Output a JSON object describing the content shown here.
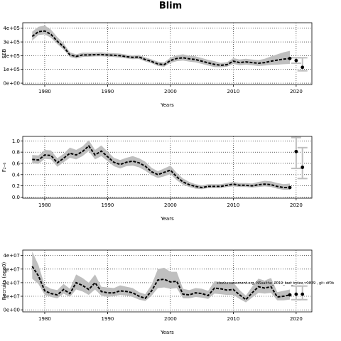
{
  "title": "Blim",
  "chart_data": [
    {
      "type": "line",
      "ylabel": "SSB",
      "xlabel": "Years",
      "xlim": [
        1976.5,
        2022.5
      ],
      "ylim": [
        -10000,
        440000
      ],
      "xticks": [
        1980,
        1990,
        2000,
        2010,
        2020
      ],
      "xtick_labels": [
        "1980",
        "1990",
        "2000",
        "2010",
        "2020"
      ],
      "yticks": [
        0,
        100000,
        200000,
        300000,
        400000
      ],
      "ytick_labels": [
        "0e+00",
        "1e+05",
        "2e+05",
        "3e+05",
        "4e+05"
      ],
      "grid": true,
      "x": [
        1978,
        1979,
        1980,
        1981,
        1982,
        1983,
        1984,
        1985,
        1986,
        1987,
        1988,
        1989,
        1990,
        1991,
        1992,
        1993,
        1994,
        1995,
        1996,
        1997,
        1998,
        1999,
        2000,
        2001,
        2002,
        2003,
        2004,
        2005,
        2006,
        2007,
        2008,
        2009,
        2010,
        2011,
        2012,
        2013,
        2014,
        2015,
        2016,
        2017,
        2018,
        2019
      ],
      "estimate": [
        340000,
        375000,
        380000,
        355000,
        305000,
        265000,
        205000,
        195000,
        205000,
        205000,
        207000,
        208000,
        205000,
        203000,
        200000,
        193000,
        188000,
        190000,
        172000,
        158000,
        140000,
        135000,
        165000,
        180000,
        185000,
        177000,
        172000,
        160000,
        148000,
        137000,
        130000,
        135000,
        160000,
        150000,
        155000,
        150000,
        145000,
        150000,
        160000,
        168000,
        175000,
        180000
      ],
      "lower": [
        310000,
        350000,
        355000,
        330000,
        285000,
        245000,
        190000,
        180000,
        190000,
        192000,
        195000,
        196000,
        193000,
        190000,
        186000,
        180000,
        175000,
        176000,
        158000,
        145000,
        125000,
        120000,
        148000,
        160000,
        165000,
        157000,
        152000,
        140000,
        128000,
        117000,
        115000,
        120000,
        140000,
        130000,
        135000,
        130000,
        125000,
        128000,
        133000,
        135000,
        138000,
        140000
      ],
      "upper": [
        375000,
        410000,
        420000,
        390000,
        335000,
        290000,
        225000,
        210000,
        222000,
        222000,
        223000,
        225000,
        220000,
        218000,
        215000,
        208000,
        202000,
        206000,
        188000,
        173000,
        157000,
        152000,
        185000,
        203000,
        210000,
        200000,
        195000,
        183000,
        170000,
        160000,
        148000,
        153000,
        182000,
        172000,
        178000,
        172000,
        168000,
        178000,
        195000,
        210000,
        225000,
        235000
      ],
      "projection": [
        {
          "year": 2020,
          "value": 165000,
          "lower": 145000,
          "upper": 185000
        },
        {
          "year": 2021,
          "value": 115000,
          "lower": 90000,
          "upper": 185000
        }
      ]
    },
    {
      "type": "line",
      "ylabel": "F₂₋₆",
      "xlabel": "Years",
      "xlim": [
        1976.5,
        2022.5
      ],
      "ylim": [
        -0.02,
        1.08
      ],
      "xticks": [
        1980,
        1990,
        2000,
        2010,
        2020
      ],
      "xtick_labels": [
        "1980",
        "1990",
        "2000",
        "2010",
        "2020"
      ],
      "yticks": [
        0.0,
        0.2,
        0.4,
        0.6,
        0.8,
        1.0
      ],
      "ytick_labels": [
        "0.0",
        "0.2",
        "0.4",
        "0.6",
        "0.8",
        "1.0"
      ],
      "grid": true,
      "x": [
        1978,
        1979,
        1980,
        1981,
        1982,
        1983,
        1984,
        1985,
        1986,
        1987,
        1988,
        1989,
        1990,
        1991,
        1992,
        1993,
        1994,
        1995,
        1996,
        1997,
        1998,
        1999,
        2000,
        2001,
        2002,
        2003,
        2004,
        2005,
        2006,
        2007,
        2008,
        2009,
        2010,
        2011,
        2012,
        2013,
        2014,
        2015,
        2016,
        2017,
        2018,
        2019
      ],
      "estimate": [
        0.67,
        0.66,
        0.75,
        0.74,
        0.61,
        0.69,
        0.78,
        0.75,
        0.81,
        0.91,
        0.75,
        0.82,
        0.72,
        0.62,
        0.58,
        0.62,
        0.64,
        0.61,
        0.55,
        0.45,
        0.4,
        0.44,
        0.48,
        0.36,
        0.27,
        0.22,
        0.19,
        0.17,
        0.19,
        0.19,
        0.19,
        0.21,
        0.23,
        0.21,
        0.21,
        0.2,
        0.22,
        0.23,
        0.22,
        0.19,
        0.17,
        0.17
      ],
      "lower": [
        0.6,
        0.59,
        0.68,
        0.67,
        0.54,
        0.62,
        0.7,
        0.67,
        0.73,
        0.82,
        0.67,
        0.73,
        0.64,
        0.55,
        0.51,
        0.55,
        0.56,
        0.53,
        0.47,
        0.39,
        0.34,
        0.37,
        0.41,
        0.3,
        0.22,
        0.18,
        0.15,
        0.14,
        0.16,
        0.16,
        0.16,
        0.18,
        0.19,
        0.18,
        0.18,
        0.17,
        0.18,
        0.19,
        0.18,
        0.15,
        0.13,
        0.13
      ],
      "upper": [
        0.75,
        0.74,
        0.84,
        0.83,
        0.69,
        0.77,
        0.88,
        0.84,
        0.9,
        1.01,
        0.84,
        0.92,
        0.81,
        0.7,
        0.66,
        0.7,
        0.73,
        0.69,
        0.63,
        0.52,
        0.46,
        0.51,
        0.56,
        0.43,
        0.33,
        0.27,
        0.23,
        0.21,
        0.23,
        0.23,
        0.23,
        0.25,
        0.27,
        0.25,
        0.25,
        0.24,
        0.27,
        0.29,
        0.28,
        0.25,
        0.23,
        0.24
      ],
      "projection": [
        {
          "year": 2020,
          "value": 0.81,
          "lower": 0.51,
          "upper": 1.06
        },
        {
          "year": 2021,
          "value": 0.53,
          "lower": 0.33,
          "upper": 0.88
        }
      ]
    },
    {
      "type": "line",
      "ylabel": "Recruits (age0)",
      "xlabel": "Years",
      "xlim": [
        1976.5,
        2022.5
      ],
      "ylim": [
        -1500000,
        44000000
      ],
      "xticks": [
        1980,
        1990,
        2000,
        2010,
        2020
      ],
      "xtick_labels": [
        "1980",
        "1990",
        "2000",
        "2010",
        "2020"
      ],
      "yticks": [
        0,
        10000000,
        20000000,
        30000000,
        40000000
      ],
      "ytick_labels": [
        "0e+00",
        "1e+07",
        "2e+07",
        "3e+07",
        "4e+07"
      ],
      "grid": true,
      "annotation": "stockassessment.org, NSsaithe_2019_bad_index, r1839 , git: df0b",
      "x": [
        1978,
        1979,
        1980,
        1981,
        1982,
        1983,
        1984,
        1985,
        1986,
        1987,
        1988,
        1989,
        1990,
        1991,
        1992,
        1993,
        1994,
        1995,
        1996,
        1997,
        1998,
        1999,
        2000,
        2001,
        2002,
        2003,
        2004,
        2005,
        2006,
        2007,
        2008,
        2009,
        2010,
        2011,
        2012,
        2013,
        2014,
        2015,
        2016,
        2017,
        2018,
        2019
      ],
      "estimate": [
        32000000,
        25000000,
        14000000,
        12000000,
        11000000,
        15000000,
        12000000,
        20000000,
        18000000,
        15000000,
        20000000,
        13500000,
        12500000,
        12500000,
        14000000,
        13500000,
        12500000,
        10000000,
        8500000,
        14000000,
        22000000,
        22500000,
        20500000,
        21000000,
        11500000,
        11000000,
        12500000,
        12000000,
        10500000,
        16000000,
        15500000,
        14500000,
        15000000,
        11000000,
        7500000,
        12500000,
        17000000,
        16000000,
        17000000,
        9500000,
        10000000,
        11000000
      ],
      "lower": [
        23000000,
        19000000,
        11000000,
        9500000,
        8500000,
        12000000,
        9500000,
        15000000,
        13500000,
        11000000,
        15000000,
        10500000,
        9500000,
        10000000,
        11000000,
        10500000,
        9500000,
        7500000,
        6500000,
        10500000,
        16000000,
        16500000,
        15500000,
        16000000,
        8500000,
        8500000,
        9500000,
        9000000,
        8000000,
        12000000,
        11500000,
        11000000,
        11000000,
        8000000,
        5500000,
        9000000,
        12500000,
        12000000,
        12500000,
        7000000,
        7000000,
        7500000
      ],
      "upper": [
        43000000,
        33000000,
        18000000,
        15500000,
        14500000,
        19000000,
        15500000,
        26000000,
        23500000,
        20000000,
        26000000,
        17000000,
        16500000,
        16000000,
        18000000,
        17000000,
        16000000,
        13000000,
        11500000,
        18500000,
        30000000,
        31000000,
        28000000,
        28000000,
        15500000,
        14500000,
        16000000,
        15500000,
        14000000,
        21000000,
        20500000,
        19000000,
        20000000,
        14500000,
        10500000,
        17000000,
        23000000,
        21500000,
        23500000,
        13000000,
        14000000,
        15000000
      ],
      "projection": [
        {
          "year": 2020,
          "value": 11500000,
          "lower": 7500000,
          "upper": 17500000
        },
        {
          "year": 2021,
          "value": 11500000,
          "lower": 7500000,
          "upper": 17500000
        }
      ]
    }
  ]
}
